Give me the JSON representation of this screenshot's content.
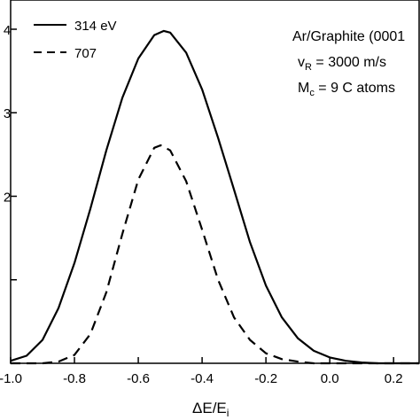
{
  "chart_data": {
    "type": "line",
    "xlabel_main": "ΔE/E",
    "xlabel_sub": "i",
    "ylabel": "",
    "xlim": [
      -1.0,
      0.28
    ],
    "ylim": [
      0,
      4.35
    ],
    "x_ticks": [
      -1.0,
      -0.8,
      -0.6,
      -0.4,
      -0.2,
      0.0,
      0.2
    ],
    "x_tick_labels": [
      "-1.0",
      "-0.8",
      "-0.6",
      "-0.4",
      "-0.2",
      "0.0",
      "0.2"
    ],
    "y_ticks": [
      0,
      1,
      2,
      3,
      4
    ],
    "y_tick_labels": [
      "",
      "",
      "2",
      "3",
      "4"
    ],
    "series": [
      {
        "name": "314 eV",
        "style": "solid",
        "x": [
          -1.0,
          -0.95,
          -0.9,
          -0.85,
          -0.8,
          -0.75,
          -0.7,
          -0.65,
          -0.6,
          -0.55,
          -0.52,
          -0.5,
          -0.45,
          -0.4,
          -0.35,
          -0.3,
          -0.25,
          -0.2,
          -0.15,
          -0.1,
          -0.05,
          0.0,
          0.05,
          0.1,
          0.15,
          0.2,
          0.25,
          0.28
        ],
        "y": [
          0.03,
          0.09,
          0.28,
          0.66,
          1.2,
          1.85,
          2.55,
          3.18,
          3.65,
          3.93,
          3.98,
          3.96,
          3.72,
          3.28,
          2.7,
          2.08,
          1.45,
          0.93,
          0.55,
          0.3,
          0.15,
          0.07,
          0.03,
          0.01,
          0.0,
          0.0,
          0.0,
          0.0
        ]
      },
      {
        "name": "707",
        "style": "dashed",
        "x": [
          -1.0,
          -0.9,
          -0.85,
          -0.8,
          -0.75,
          -0.7,
          -0.65,
          -0.6,
          -0.55,
          -0.53,
          -0.5,
          -0.45,
          -0.4,
          -0.35,
          -0.3,
          -0.25,
          -0.2,
          -0.15,
          -0.1,
          -0.05,
          0.0,
          0.1,
          0.28
        ],
        "y": [
          0.0,
          0.0,
          0.02,
          0.1,
          0.35,
          0.85,
          1.55,
          2.2,
          2.58,
          2.61,
          2.55,
          2.18,
          1.6,
          1.0,
          0.55,
          0.28,
          0.12,
          0.05,
          0.02,
          0.0,
          0.0,
          0.0,
          0.0
        ]
      }
    ],
    "legend": {
      "position": "top-left",
      "entries": [
        {
          "label": "314 eV",
          "style": "solid"
        },
        {
          "label": "707",
          "style": "dashed"
        }
      ]
    },
    "annotations": {
      "line1": "Ar/Graphite (0001",
      "line2_main": "v",
      "line2_sub": "R",
      "line2_rest": " = 3000 m/s",
      "line3_main": "M",
      "line3_sub": "c",
      "line3_rest": " = 9 C atoms"
    },
    "grid": false
  }
}
